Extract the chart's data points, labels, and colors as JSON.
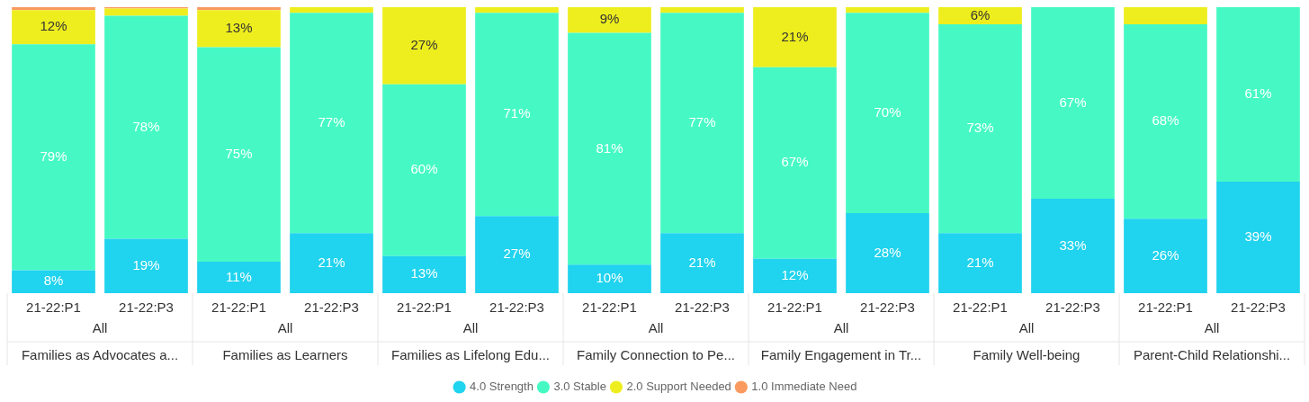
{
  "chart_data": {
    "type": "bar",
    "stacked": true,
    "categories": [
      "21-22:P1",
      "21-22:P3",
      "21-22:P1",
      "21-22:P3",
      "21-22:P1",
      "21-22:P3",
      "21-22:P1",
      "21-22:P3",
      "21-22:P1",
      "21-22:P3",
      "21-22:P1",
      "21-22:P3",
      "21-22:P1",
      "21-22:P3"
    ],
    "series": [
      {
        "name": "4.0 Strength",
        "color": "#20d3ee",
        "values": [
          8,
          19,
          11,
          21,
          13,
          27,
          10,
          21,
          12,
          28,
          21,
          33,
          26,
          39
        ],
        "value_labels": [
          "8%",
          "19%",
          "11%",
          "21%",
          "13%",
          "27%",
          "10%",
          "21%",
          "12%",
          "28%",
          "21%",
          "33%",
          "26%",
          "39%"
        ]
      },
      {
        "name": "3.0 Stable",
        "color": "#46f9c4",
        "values": [
          79,
          78,
          75,
          77,
          60,
          71,
          81,
          77,
          67,
          70,
          73,
          67,
          68,
          61
        ],
        "value_labels": [
          "79%",
          "78%",
          "75%",
          "77%",
          "60%",
          "71%",
          "81%",
          "77%",
          "67%",
          "70%",
          "73%",
          "67%",
          "68%",
          "61%"
        ]
      },
      {
        "name": "2.0 Support Needed",
        "color": "#eeee1f",
        "values": [
          12,
          2.5,
          13,
          2,
          27,
          2,
          9,
          2,
          21,
          2,
          6,
          0,
          6,
          0
        ],
        "value_labels": [
          "12%",
          null,
          "13%",
          null,
          "27%",
          null,
          "9%",
          null,
          "21%",
          null,
          "6%",
          null,
          null,
          null
        ]
      },
      {
        "name": "1.0 Immediate Need",
        "color": "#fa9a60",
        "values": [
          1,
          0.5,
          1,
          0,
          0,
          0,
          0,
          0,
          0,
          0,
          0,
          0,
          0,
          0
        ]
      }
    ],
    "ylim": [
      0,
      100
    ],
    "tick_labels": "x",
    "grid": false,
    "legend": "bottom",
    "annotations": [
      "All",
      "All",
      "All",
      "All",
      "All",
      "All",
      "All",
      "Families as Advocates a...",
      "Families as Learners",
      "Families as Lifelong Edu...",
      "Family Connection to Pe...",
      "Family Engagement in Tr...",
      "Family Well-being",
      "Parent-Child Relationshi..."
    ]
  }
}
